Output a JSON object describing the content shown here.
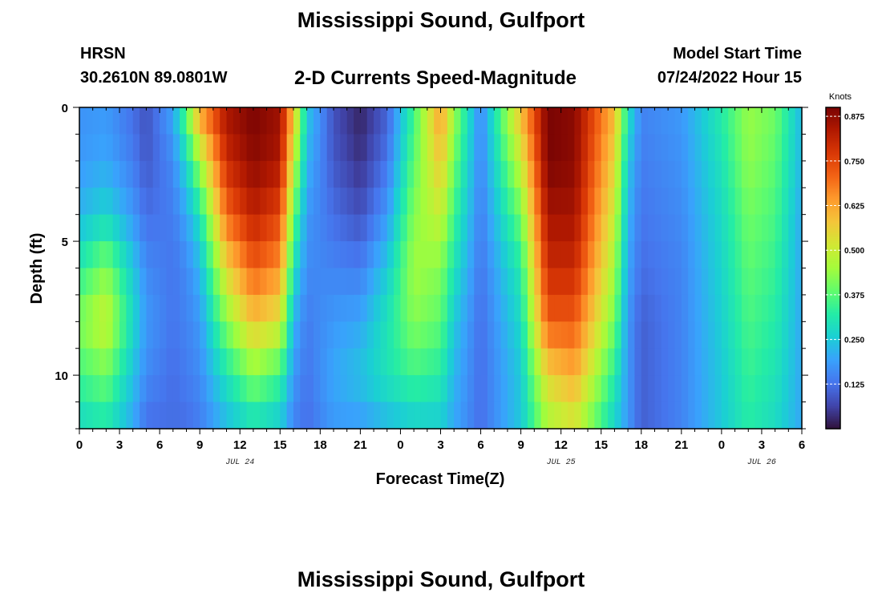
{
  "header": {
    "title": "Mississippi Sound, Gulfport",
    "model": "HRSN",
    "coords": "30.2610N  89.0801W",
    "subtitle": "2-D Currents Speed-Magnitude",
    "start_label": "Model Start Time",
    "start_value": "07/24/2022 Hour 15"
  },
  "footer": {
    "title": "Mississippi Sound, Gulfport"
  },
  "chart_data": {
    "type": "heatmap",
    "title": "2-D Currents Speed-Magnitude",
    "xlabel": "Forecast Time(Z)",
    "ylabel": "Depth (ft)",
    "x_hours_range": [
      0,
      54
    ],
    "y_range_ft": [
      0,
      12
    ],
    "y_inverted": true,
    "x_tick_labels": [
      "0",
      "3",
      "6",
      "9",
      "12",
      "15",
      "18",
      "21",
      "0",
      "3",
      "6",
      "9",
      "12",
      "15",
      "18",
      "21",
      "0",
      "3",
      "6"
    ],
    "y_tick_labels": [
      "0",
      "5",
      "10"
    ],
    "date_labels": [
      {
        "text": "JUL 24",
        "hour": 12
      },
      {
        "text": "JUL 25",
        "hour": 36
      },
      {
        "text": "JUL 26",
        "hour": 51
      }
    ],
    "colorbar": {
      "units": "Knots",
      "range": [
        0.0,
        0.9
      ],
      "ticks": [
        "0.125",
        "0.250",
        "0.375",
        "0.500",
        "0.625",
        "0.750",
        "0.875"
      ],
      "colors": [
        "#30123b",
        "#4145ab",
        "#4675ed",
        "#39a2fc",
        "#1bcfd4",
        "#24eca6",
        "#61fc6c",
        "#a4fc3b",
        "#d1e834",
        "#f3c63a",
        "#fe9b2d",
        "#f36315",
        "#d93806",
        "#b11901",
        "#7a0403"
      ]
    },
    "speed_profiles_knots": [
      {
        "hour": 0,
        "depth_ft": [
          0,
          2,
          4,
          6,
          8,
          10,
          12
        ],
        "speed": [
          0.17,
          0.18,
          0.22,
          0.32,
          0.42,
          0.35,
          0.27
        ]
      },
      {
        "hour": 2,
        "depth_ft": [
          0,
          2,
          4,
          6,
          8,
          10,
          12
        ],
        "speed": [
          0.18,
          0.2,
          0.27,
          0.42,
          0.5,
          0.4,
          0.3
        ]
      },
      {
        "hour": 4,
        "depth_ft": [
          0,
          2,
          4,
          6,
          8,
          10,
          12
        ],
        "speed": [
          0.12,
          0.14,
          0.18,
          0.25,
          0.28,
          0.24,
          0.2
        ]
      },
      {
        "hour": 5,
        "depth_ft": [
          0,
          2,
          4,
          6,
          8,
          10,
          12
        ],
        "speed": [
          0.08,
          0.09,
          0.12,
          0.16,
          0.18,
          0.16,
          0.12
        ]
      },
      {
        "hour": 7,
        "depth_ft": [
          0,
          2,
          4,
          6,
          8,
          10,
          12
        ],
        "speed": [
          0.2,
          0.16,
          0.14,
          0.13,
          0.13,
          0.12,
          0.12
        ]
      },
      {
        "hour": 8,
        "depth_ft": [
          0,
          2,
          4,
          6,
          8,
          10,
          12
        ],
        "speed": [
          0.4,
          0.28,
          0.2,
          0.16,
          0.15,
          0.14,
          0.12
        ]
      },
      {
        "hour": 9,
        "depth_ft": [
          0,
          2,
          4,
          6,
          8,
          10,
          12
        ],
        "speed": [
          0.65,
          0.45,
          0.3,
          0.22,
          0.18,
          0.16,
          0.14
        ]
      },
      {
        "hour": 11,
        "depth_ft": [
          0,
          2,
          4,
          6,
          8,
          10,
          12
        ],
        "speed": [
          0.85,
          0.8,
          0.7,
          0.55,
          0.42,
          0.3,
          0.22
        ]
      },
      {
        "hour": 13,
        "depth_ft": [
          0,
          2,
          4,
          6,
          8,
          10,
          12
        ],
        "speed": [
          0.9,
          0.88,
          0.82,
          0.72,
          0.58,
          0.42,
          0.28
        ]
      },
      {
        "hour": 15,
        "depth_ft": [
          0,
          2,
          4,
          6,
          8,
          10,
          12
        ],
        "speed": [
          0.86,
          0.84,
          0.75,
          0.65,
          0.52,
          0.35,
          0.24
        ]
      },
      {
        "hour": 16,
        "depth_ft": [
          0,
          2,
          4,
          6,
          8,
          10,
          12
        ],
        "speed": [
          0.6,
          0.5,
          0.4,
          0.3,
          0.22,
          0.18,
          0.15
        ]
      },
      {
        "hour": 17,
        "depth_ft": [
          0,
          2,
          4,
          6,
          8,
          10,
          12
        ],
        "speed": [
          0.25,
          0.22,
          0.18,
          0.16,
          0.14,
          0.13,
          0.12
        ]
      },
      {
        "hour": 19,
        "depth_ft": [
          0,
          2,
          4,
          6,
          8,
          10,
          12
        ],
        "speed": [
          0.08,
          0.09,
          0.12,
          0.15,
          0.18,
          0.2,
          0.18
        ]
      },
      {
        "hour": 21,
        "depth_ft": [
          0,
          2,
          4,
          6,
          8,
          10,
          12
        ],
        "speed": [
          0.02,
          0.04,
          0.08,
          0.14,
          0.2,
          0.24,
          0.18
        ]
      },
      {
        "hour": 23,
        "depth_ft": [
          0,
          2,
          4,
          6,
          8,
          10,
          12
        ],
        "speed": [
          0.1,
          0.13,
          0.18,
          0.25,
          0.3,
          0.3,
          0.22
        ]
      },
      {
        "hour": 25,
        "depth_ft": [
          0,
          2,
          4,
          6,
          8,
          10,
          12
        ],
        "speed": [
          0.35,
          0.38,
          0.42,
          0.45,
          0.42,
          0.35,
          0.25
        ]
      },
      {
        "hour": 27,
        "depth_ft": [
          0,
          2,
          4,
          6,
          8,
          10,
          12
        ],
        "speed": [
          0.65,
          0.58,
          0.5,
          0.42,
          0.38,
          0.32,
          0.25
        ]
      },
      {
        "hour": 28,
        "depth_ft": [
          0,
          2,
          4,
          6,
          8,
          10,
          12
        ],
        "speed": [
          0.45,
          0.4,
          0.35,
          0.3,
          0.25,
          0.22,
          0.2
        ]
      },
      {
        "hour": 30,
        "depth_ft": [
          0,
          2,
          4,
          6,
          8,
          10,
          12
        ],
        "speed": [
          0.15,
          0.15,
          0.14,
          0.13,
          0.12,
          0.12,
          0.12
        ]
      },
      {
        "hour": 33,
        "depth_ft": [
          0,
          2,
          4,
          6,
          8,
          10,
          12
        ],
        "speed": [
          0.6,
          0.5,
          0.4,
          0.32,
          0.28,
          0.25,
          0.25
        ]
      },
      {
        "hour": 35,
        "depth_ft": [
          0,
          2,
          4,
          6,
          8,
          10,
          12
        ],
        "speed": [
          0.9,
          0.9,
          0.85,
          0.8,
          0.72,
          0.55,
          0.45
        ]
      },
      {
        "hour": 37,
        "depth_ft": [
          0,
          2,
          4,
          6,
          8,
          10,
          12
        ],
        "speed": [
          0.88,
          0.88,
          0.85,
          0.8,
          0.72,
          0.62,
          0.5
        ]
      },
      {
        "hour": 40,
        "depth_ft": [
          0,
          2,
          4,
          6,
          8,
          10,
          12
        ],
        "speed": [
          0.6,
          0.55,
          0.5,
          0.45,
          0.4,
          0.32,
          0.26
        ]
      },
      {
        "hour": 41,
        "depth_ft": [
          0,
          2,
          4,
          6,
          8,
          10,
          12
        ],
        "speed": [
          0.3,
          0.25,
          0.22,
          0.2,
          0.18,
          0.18,
          0.18
        ]
      },
      {
        "hour": 42,
        "depth_ft": [
          0,
          2,
          4,
          6,
          8,
          10,
          12
        ],
        "speed": [
          0.15,
          0.14,
          0.13,
          0.12,
          0.1,
          0.1,
          0.1
        ]
      },
      {
        "hour": 45,
        "depth_ft": [
          0,
          2,
          4,
          6,
          8,
          10,
          12
        ],
        "speed": [
          0.18,
          0.17,
          0.16,
          0.15,
          0.15,
          0.15,
          0.15
        ]
      },
      {
        "hour": 48,
        "depth_ft": [
          0,
          2,
          4,
          6,
          8,
          10,
          12
        ],
        "speed": [
          0.32,
          0.3,
          0.28,
          0.27,
          0.26,
          0.25,
          0.25
        ]
      },
      {
        "hour": 50,
        "depth_ft": [
          0,
          2,
          4,
          6,
          8,
          10,
          12
        ],
        "speed": [
          0.44,
          0.43,
          0.4,
          0.38,
          0.36,
          0.34,
          0.32
        ]
      },
      {
        "hour": 52,
        "depth_ft": [
          0,
          2,
          4,
          6,
          8,
          10,
          12
        ],
        "speed": [
          0.4,
          0.38,
          0.36,
          0.34,
          0.32,
          0.3,
          0.28
        ]
      },
      {
        "hour": 54,
        "depth_ft": [
          0,
          2,
          4,
          6,
          8,
          10,
          12
        ],
        "speed": [
          0.22,
          0.22,
          0.2,
          0.2,
          0.2,
          0.2,
          0.2
        ]
      }
    ]
  }
}
